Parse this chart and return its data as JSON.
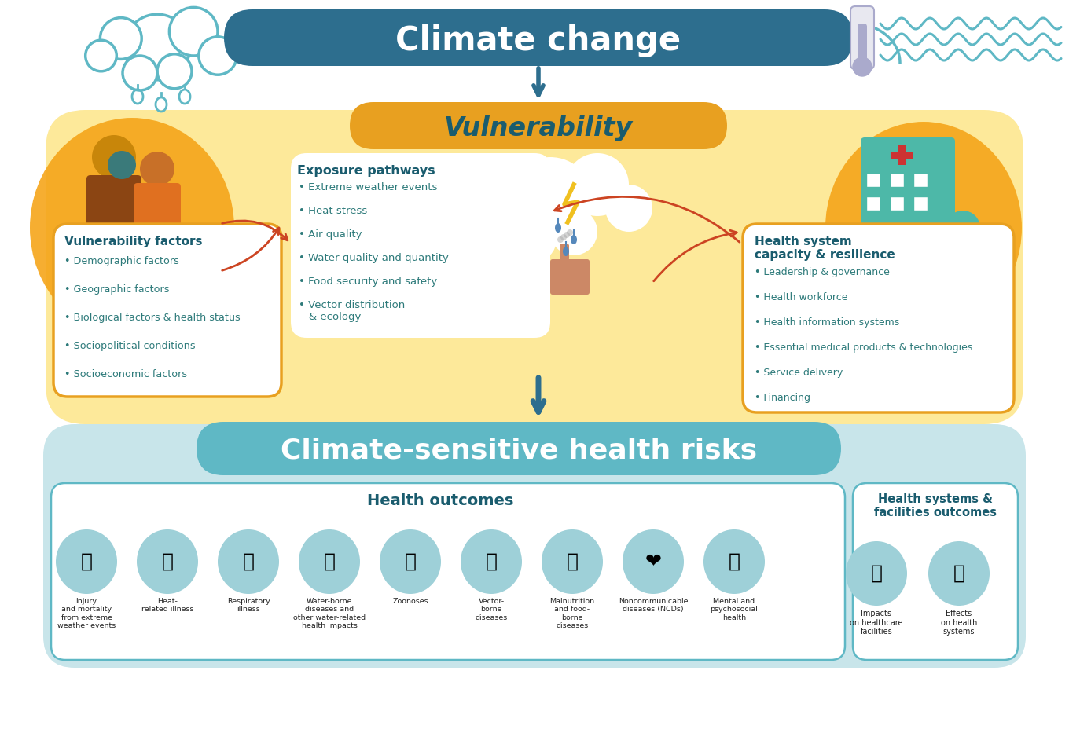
{
  "title_climate": "Climate change",
  "title_vulnerability": "Vulnerability",
  "title_exposure": "Exposure pathways",
  "title_health_risks": "Climate-sensitive health risks",
  "title_health_outcomes": "Health outcomes",
  "title_health_systems": "Health systems &\nfacilities outcomes",
  "title_vulnerability_factors": "Vulnerability factors",
  "title_health_system_capacity": "Health system\ncapacity & resilience",
  "exposure_items": [
    "Extreme weather events",
    "Heat stress",
    "Air quality",
    "Water quality and quantity",
    "Food security and safety",
    "Vector distribution\n   & ecology"
  ],
  "vulnerability_items": [
    "Demographic factors",
    "Geographic factors",
    "Biological factors & health status",
    "Sociopolitical conditions",
    "Socioeconomic factors"
  ],
  "health_system_items": [
    "Leadership & governance",
    "Health workforce",
    "Health information systems",
    "Essential medical products & technologies",
    "Service delivery",
    "Financing"
  ],
  "health_outcomes": [
    "Injury\nand mortality\nfrom extreme\nweather events",
    "Heat-\nrelated illness",
    "Respiratory\nillness",
    "Water-borne\ndiseases and\nother water-related\nhealth impacts",
    "Zoonoses",
    "Vector-\nborne\ndiseases",
    "Malnutrition\nand food-\nborne\ndiseases",
    "Noncommunicable\ndiseases (NCDs)",
    "Mental and\npsychosocial\nhealth"
  ],
  "health_facility_outcomes": [
    "Impacts\non healthcare\nfacilities",
    "Effects\non health\nsystems"
  ],
  "colors": {
    "climate_banner": "#2d6e8e",
    "vulnerability_banner": "#e8a020",
    "vulnerability_bg": "#fde99a",
    "health_risks_banner": "#5fb8c5",
    "health_risks_bg": "#b8dfe5",
    "arrow_color": "#2d6e8e",
    "red_arrow": "#cc4422",
    "teal_text": "#2d7a7a",
    "dark_teal": "#1a5c6e",
    "icon_circle": "#9ed0d8",
    "icon_color": "#2d6e8e",
    "outline_teal": "#5fb8c5",
    "outline_yellow": "#e8a020",
    "white": "#ffffff",
    "black": "#111111",
    "light_blue_bg": "#c8e5ea",
    "cloud_white": "#ffffff",
    "people_orange": "#f5a51a",
    "people_orange_light": "#fcc84a",
    "hosp_teal": "#4db8a8"
  }
}
